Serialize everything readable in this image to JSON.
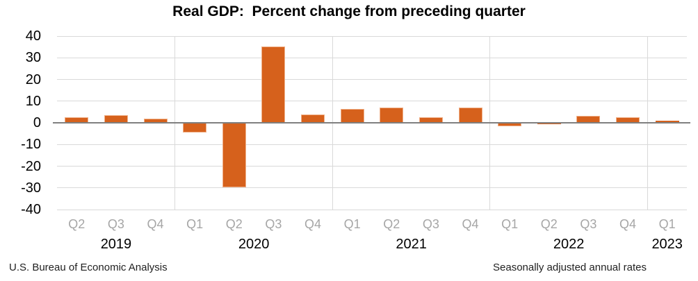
{
  "page": {
    "title": "Real GDP:  Percent change from preceding quarter",
    "source": "U.S. Bureau of Economic Analysis",
    "note": "Seasonally adjusted annual rates"
  },
  "colors": {
    "background": "#FFFFFF",
    "bar_fill": "#D6611C",
    "bar_border": "#F0B088",
    "gridline": "#D9D9D9",
    "zero_line": "#7F7F7F",
    "quarter_label": "#A6A6A6",
    "axis_text": "#000000",
    "footer_text": "#1F1F1F"
  },
  "chart_data": {
    "type": "bar",
    "title": "Real GDP:  Percent change from preceding quarter",
    "categories": [
      "Q2",
      "Q3",
      "Q4",
      "Q1",
      "Q2",
      "Q3",
      "Q4",
      "Q1",
      "Q2",
      "Q3",
      "Q4",
      "Q1",
      "Q2",
      "Q3",
      "Q4",
      "Q1"
    ],
    "values": [
      2.7,
      3.6,
      1.8,
      -4.6,
      -29.9,
      35.3,
      3.9,
      6.3,
      7.0,
      2.7,
      7.0,
      -1.6,
      -0.6,
      3.2,
      2.6,
      1.1
    ],
    "year_groups": [
      {
        "label": "2019",
        "count": 3
      },
      {
        "label": "2020",
        "count": 4
      },
      {
        "label": "2021",
        "count": 4
      },
      {
        "label": "2022",
        "count": 4
      },
      {
        "label": "2023",
        "count": 1
      }
    ],
    "yticks": [
      40,
      30,
      20,
      10,
      0,
      -10,
      -20,
      -30,
      -40
    ],
    "ylim": [
      -40,
      40
    ],
    "xlabel": "",
    "ylabel": "",
    "grid": true,
    "legend": "none",
    "source_label": "U.S. Bureau of Economic Analysis",
    "note_label": "Seasonally adjusted annual rates"
  }
}
